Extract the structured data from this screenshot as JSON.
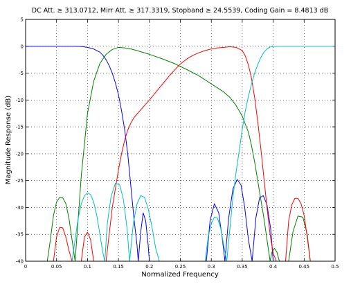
{
  "chart_data": {
    "type": "line",
    "title": "DC Att. ≥ 313.0712, Mirr Att. ≥ 317.3319, Stopband ≥ 24.5539, Coding Gain = 8.4813 dB",
    "xlabel": "Normalized Frequency",
    "ylabel": "Magnitude Response (dB)",
    "xlim": [
      0,
      0.5
    ],
    "ylim": [
      -40,
      5
    ],
    "grid": true,
    "x_ticks": [
      "0",
      "0.05",
      "0.1",
      "0.15",
      "0.2",
      "0.25",
      "0.3",
      "0.35",
      "0.4",
      "0.45",
      "0.5"
    ],
    "y_ticks": [
      "5",
      "0",
      "-5",
      "-10",
      "-15",
      "-20",
      "-25",
      "-30",
      "-35",
      "-40"
    ],
    "series": [
      {
        "color": "#0000ff",
        "x": [
          0,
          0.02,
          0.04,
          0.06,
          0.08,
          0.09,
          0.1,
          0.11,
          0.12,
          0.125,
          0.13,
          0.135,
          0.14,
          0.145,
          0.15,
          0.155,
          0.16,
          0.165,
          0.17,
          0.175,
          0.18,
          0.182,
          null,
          0.182,
          0.186,
          0.19,
          0.194,
          0.198,
          0.2,
          null,
          0.292,
          0.298,
          0.305,
          0.312,
          0.318,
          0.322,
          null,
          0.322,
          0.328,
          0.335,
          0.342,
          0.348,
          0.354,
          0.36,
          0.366,
          null,
          0.366,
          0.372,
          0.378,
          0.384,
          0.39,
          0.396,
          0.4
        ],
        "y": [
          0,
          0,
          0,
          0,
          0,
          -0.05,
          -0.2,
          -0.5,
          -1.1,
          -1.7,
          -2.5,
          -3.6,
          -5,
          -6.8,
          -9,
          -12,
          -15.5,
          -20,
          -26,
          -32,
          -37,
          -40,
          null,
          -40,
          -34.5,
          -31,
          -32.5,
          -37,
          -40,
          null,
          -40,
          -32.5,
          -29.3,
          -31,
          -36,
          -40,
          null,
          -40,
          -32,
          -26.5,
          -24.8,
          -25.8,
          -30,
          -36,
          -40,
          null,
          -40,
          -32,
          -28.2,
          -27.8,
          -29.5,
          -34,
          -40
        ]
      },
      {
        "color": "#008000",
        "x": [
          0.035,
          0.04,
          0.045,
          0.05,
          0.055,
          0.06,
          0.065,
          0.07,
          0.075,
          0.08,
          null,
          0.08,
          0.09,
          0.1,
          0.11,
          0.12,
          0.13,
          0.14,
          0.15,
          0.16,
          0.17,
          0.18,
          0.2,
          0.22,
          0.24,
          0.26,
          0.28,
          0.3,
          0.32,
          0.33,
          0.34,
          0.35,
          0.36,
          0.365,
          0.37,
          0.375,
          0.38,
          0.385,
          0.39,
          0.395,
          null,
          0.395,
          0.398,
          0.402,
          0.406,
          0.41,
          null,
          0.425,
          0.432,
          0.44,
          0.448,
          0.455,
          0.46
        ],
        "y": [
          -40,
          -36,
          -31.5,
          -29,
          -28.1,
          -28.2,
          -29.3,
          -32,
          -36,
          -40,
          null,
          -40,
          -24,
          -12.5,
          -6.5,
          -3.2,
          -1.5,
          -0.6,
          -0.2,
          -0.3,
          -0.5,
          -0.8,
          -1.5,
          -2.3,
          -3.2,
          -4.3,
          -5.5,
          -7,
          -8.5,
          -9.5,
          -11,
          -13,
          -16,
          -18.5,
          -21.5,
          -25,
          -28.5,
          -32,
          -36,
          -40,
          null,
          -40,
          -38.3,
          -37.6,
          -38.3,
          -40,
          null,
          -40,
          -34.5,
          -31.6,
          -31.8,
          -35,
          -40
        ]
      },
      {
        "color": "#ff0000",
        "x": [
          0.045,
          0.05,
          0.055,
          0.06,
          0.065,
          0.07,
          0.075,
          null,
          0.09,
          0.095,
          0.1,
          0.105,
          0.11,
          null,
          0.13,
          0.14,
          0.15,
          0.155,
          0.16,
          0.165,
          0.17,
          0.175,
          0.18,
          0.19,
          0.2,
          0.21,
          0.22,
          0.23,
          0.24,
          0.25,
          0.26,
          0.27,
          0.28,
          0.29,
          0.3,
          0.31,
          0.32,
          0.33,
          0.34,
          0.35,
          0.355,
          0.36,
          0.365,
          0.37,
          0.375,
          0.38,
          0.385,
          0.39,
          0.395,
          0.4,
          0.405,
          0.41,
          null,
          0.42,
          0.425,
          0.43,
          0.435,
          0.44,
          0.445,
          0.45,
          0.455,
          0.46
        ],
        "y": [
          -40,
          -35.5,
          -33.7,
          -33.8,
          -35.5,
          -38,
          -40,
          null,
          -40,
          -35.5,
          -34.6,
          -36,
          -40,
          null,
          -40,
          -30,
          -23,
          -20,
          -17.5,
          -15.6,
          -14.3,
          -13.3,
          -12.6,
          -11.3,
          -10,
          -8.6,
          -7.2,
          -5.8,
          -4.5,
          -3.3,
          -2.4,
          -1.7,
          -1.2,
          -0.8,
          -0.5,
          -0.3,
          -0.2,
          -0.1,
          -0.2,
          -0.8,
          -1.8,
          -3.5,
          -6,
          -9.5,
          -14,
          -19,
          -24.5,
          -30,
          -35,
          -38.5,
          -40,
          -40,
          null,
          -40,
          -32.5,
          -29.5,
          -28.3,
          -28.3,
          -29.3,
          -31.5,
          -35.5,
          -40
        ]
      },
      {
        "color": "#00c0c0",
        "x": [
          0.075,
          0.08,
          0.085,
          0.09,
          0.095,
          0.1,
          0.105,
          0.11,
          0.115,
          0.12,
          0.125,
          0.128,
          null,
          0.128,
          0.132,
          0.138,
          0.145,
          0.152,
          0.158,
          0.164,
          0.168,
          null,
          0.168,
          0.174,
          0.18,
          0.186,
          0.192,
          0.198,
          0.204,
          0.21,
          0.216,
          0.22,
          null,
          0.29,
          0.295,
          0.3,
          0.305,
          0.31,
          0.315,
          0.32,
          0.325,
          null,
          0.325,
          0.33,
          0.335,
          0.34,
          0.345,
          0.35,
          0.355,
          0.36,
          0.365,
          0.37,
          0.375,
          0.38,
          0.385,
          0.39,
          0.395,
          0.4,
          0.41,
          0.42,
          0.44,
          0.46,
          0.48,
          0.5
        ],
        "y": [
          -40,
          -36,
          -32,
          -29.3,
          -27.8,
          -27.3,
          -27.6,
          -29,
          -31.5,
          -35,
          -38.5,
          -40,
          null,
          -40,
          -33,
          -28,
          -25.5,
          -25.8,
          -28.5,
          -34,
          -40,
          null,
          -40,
          -33,
          -29.3,
          -27.8,
          -28.1,
          -30.2,
          -33.5,
          -37.5,
          -40,
          -40,
          null,
          -40,
          -35.5,
          -33,
          -31.8,
          -32,
          -33.8,
          -37,
          -40,
          null,
          -40,
          -34,
          -28,
          -23.5,
          -19.5,
          -15.5,
          -12,
          -9.3,
          -7,
          -5,
          -3.4,
          -2.1,
          -1.1,
          -0.5,
          -0.15,
          -0.05,
          0,
          0,
          0,
          0,
          0,
          0
        ]
      }
    ]
  }
}
